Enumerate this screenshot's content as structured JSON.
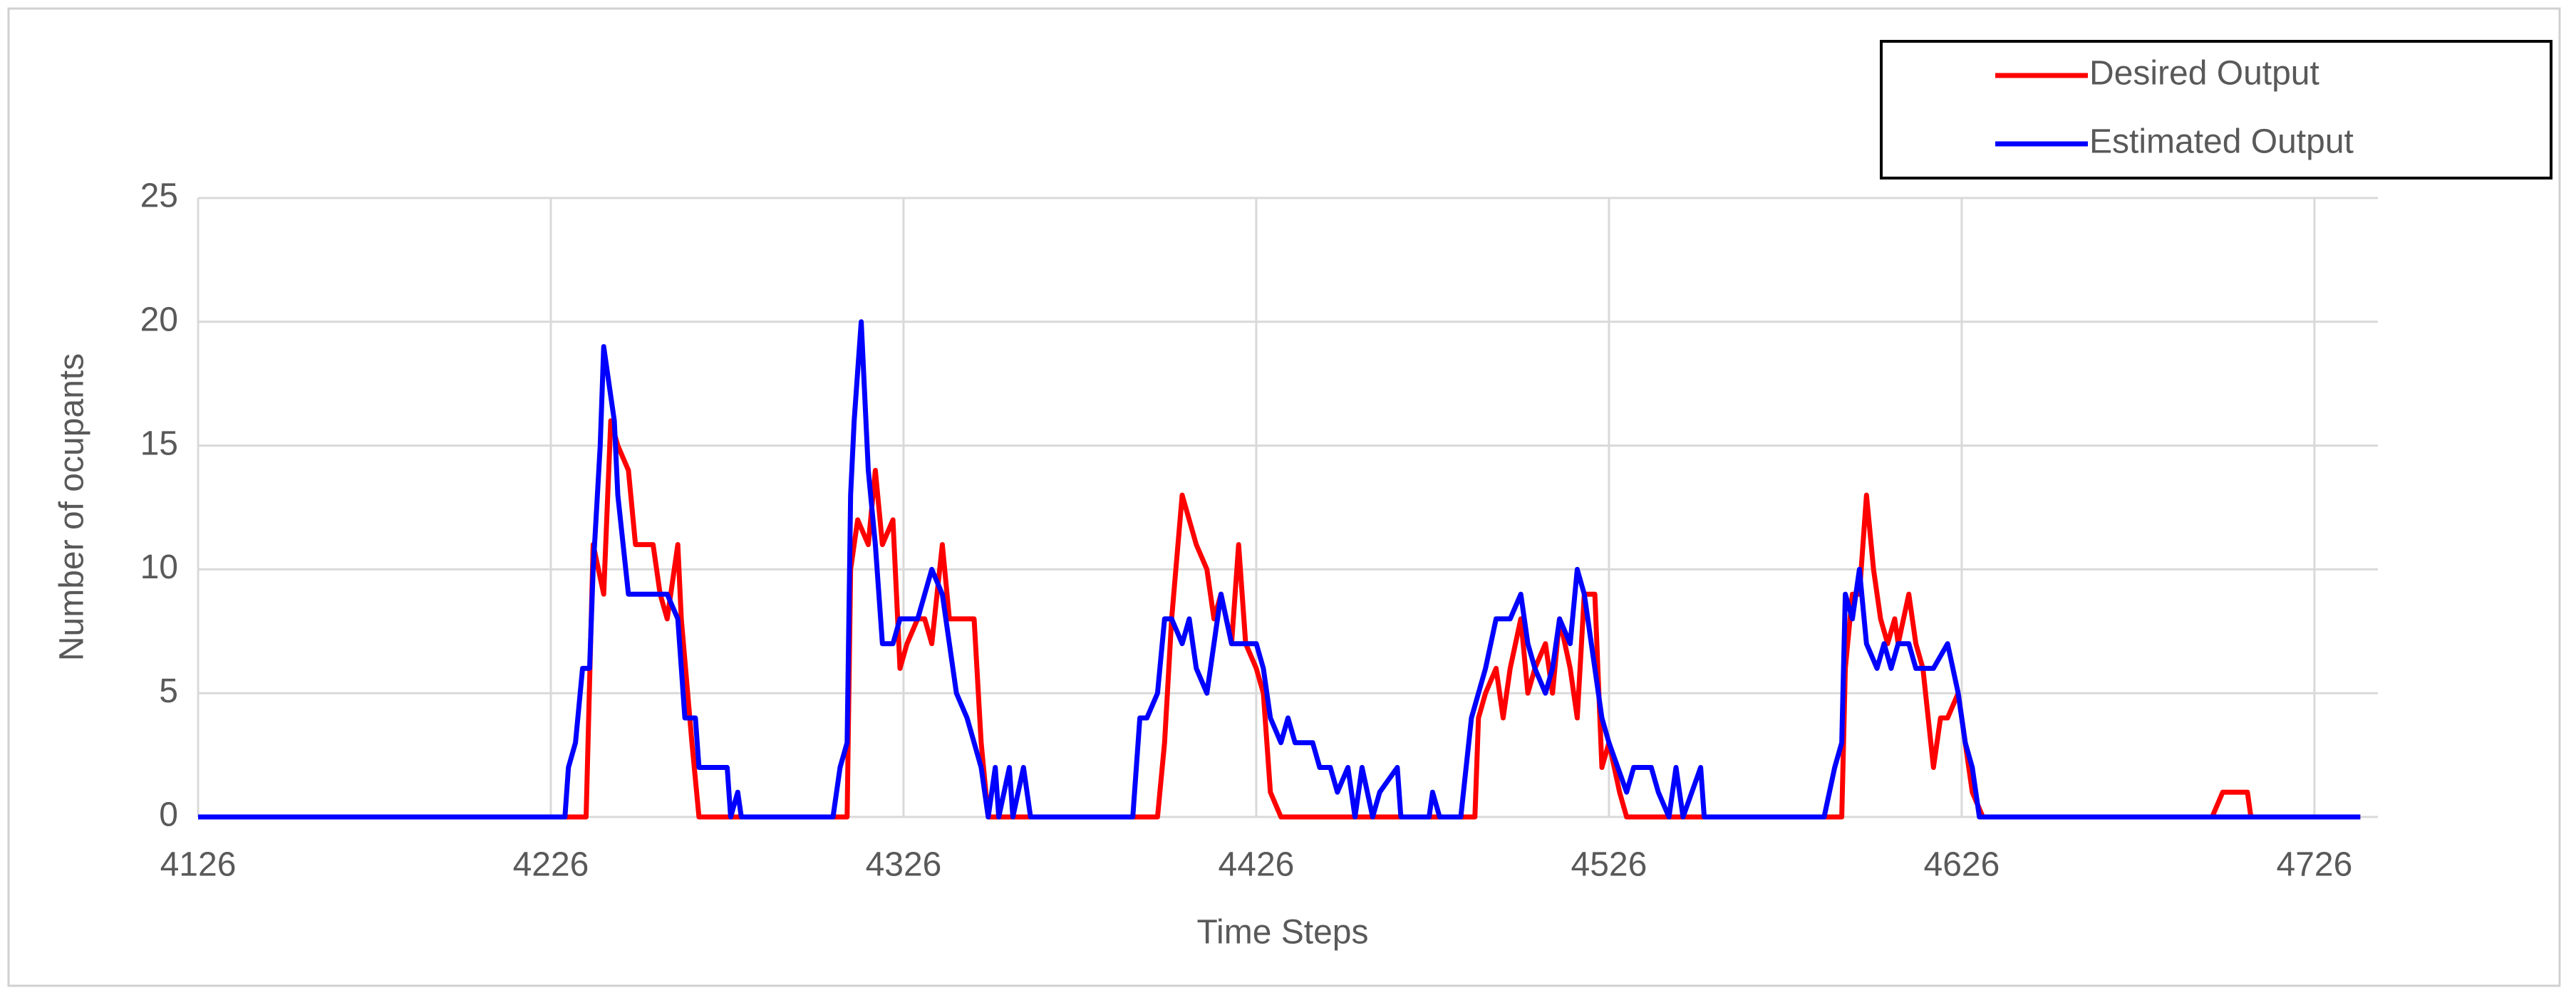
{
  "chart_data": {
    "type": "line",
    "x_label": "Time Steps",
    "y_label": "Number of ocupants",
    "xlim": [
      4126,
      4744
    ],
    "xticks": [
      4126,
      4226,
      4326,
      4426,
      4526,
      4626,
      4726
    ],
    "ylim": [
      0,
      25
    ],
    "yticks": [
      0,
      5,
      10,
      15,
      20,
      25
    ],
    "grid": true,
    "legend": "upper right",
    "series": [
      {
        "name": "Desired Output",
        "color": "#ff0000",
        "x": [
          4126,
          4236,
          4238,
          4241,
          4243,
          4245,
          4248,
          4250,
          4252,
          4255,
          4257,
          4259,
          4262,
          4263,
          4266,
          4268,
          4310,
          4311,
          4313,
          4316,
          4318,
          4320,
          4323,
          4325,
          4327,
          4330,
          4332,
          4334,
          4337,
          4339,
          4341,
          4346,
          4348,
          4350,
          4398,
          4400,
          4402,
          4405,
          4407,
          4409,
          4412,
          4414,
          4416,
          4419,
          4421,
          4423,
          4426,
          4428,
          4430,
          4433,
          4488,
          4489,
          4491,
          4494,
          4496,
          4498,
          4501,
          4503,
          4505,
          4508,
          4510,
          4512,
          4515,
          4517,
          4519,
          4522,
          4524,
          4526,
          4529,
          4531,
          4592,
          4593,
          4595,
          4597,
          4599,
          4601,
          4603,
          4605,
          4607,
          4608,
          4611,
          4613,
          4615,
          4618,
          4620,
          4622,
          4625,
          4627,
          4629,
          4632,
          4697,
          4700,
          4707,
          4708,
          4739
        ],
        "values": [
          0,
          0,
          11,
          9,
          16,
          15,
          14,
          11,
          11,
          11,
          9,
          8,
          11,
          8,
          3,
          0,
          0,
          10,
          12,
          11,
          14,
          11,
          12,
          6,
          7,
          8,
          8,
          7,
          11,
          8,
          8,
          8,
          3,
          0,
          0,
          3,
          8,
          13,
          12,
          11,
          10,
          8,
          9,
          7,
          11,
          7,
          6,
          5,
          1,
          0,
          0,
          4,
          5,
          6,
          4,
          6,
          8,
          5,
          6,
          7,
          5,
          8,
          6,
          4,
          9,
          9,
          2,
          3,
          1,
          0,
          0,
          6,
          9,
          9,
          13,
          10,
          8,
          7,
          8,
          7,
          9,
          7,
          6,
          2,
          4,
          4,
          5,
          3,
          1,
          0,
          0,
          1,
          1,
          0,
          0
        ]
      },
      {
        "name": "Estimated Output",
        "color": "#0000ff",
        "x": [
          4126,
          4230,
          4231,
          4233,
          4235,
          4237,
          4238,
          4240,
          4241,
          4243,
          4244,
          4245,
          4248,
          4259,
          4262,
          4264,
          4267,
          4268,
          4276,
          4277,
          4279,
          4280,
          4306,
          4308,
          4310,
          4311,
          4312,
          4313,
          4314,
          4316,
          4318,
          4320,
          4323,
          4325,
          4330,
          4332,
          4334,
          4337,
          4339,
          4341,
          4344,
          4346,
          4348,
          4350,
          4352,
          4353,
          4356,
          4357,
          4360,
          4362,
          4391,
          4393,
          4395,
          4398,
          4400,
          4402,
          4405,
          4407,
          4409,
          4412,
          4414,
          4416,
          4419,
          4421,
          4426,
          4428,
          4430,
          4433,
          4435,
          4437,
          4442,
          4444,
          4447,
          4449,
          4452,
          4454,
          4456,
          4459,
          4461,
          4466,
          4467,
          4475,
          4476,
          4478,
          4484,
          4487,
          4489,
          4491,
          4494,
          4498,
          4501,
          4503,
          4505,
          4508,
          4510,
          4512,
          4515,
          4517,
          4519,
          4522,
          4524,
          4526,
          4531,
          4533,
          4538,
          4540,
          4543,
          4545,
          4547,
          4552,
          4553,
          4587,
          4590,
          4592,
          4593,
          4595,
          4597,
          4599,
          4602,
          4604,
          4606,
          4608,
          4611,
          4613,
          4618,
          4622,
          4625,
          4627,
          4629,
          4631,
          4739
        ],
        "values": [
          0,
          0,
          2,
          3,
          6,
          6,
          10,
          15,
          19,
          17,
          16,
          13,
          9,
          9,
          8,
          4,
          4,
          2,
          2,
          0,
          1,
          0,
          0,
          2,
          3,
          13,
          16,
          18,
          20,
          14,
          11,
          7,
          7,
          8,
          8,
          9,
          10,
          9,
          7,
          5,
          4,
          3,
          2,
          0,
          2,
          0,
          2,
          0,
          2,
          0,
          0,
          4,
          4,
          5,
          8,
          8,
          7,
          8,
          6,
          5,
          7,
          9,
          7,
          7,
          7,
          6,
          4,
          3,
          4,
          3,
          3,
          2,
          2,
          1,
          2,
          0,
          2,
          0,
          1,
          2,
          0,
          0,
          1,
          0,
          0,
          4,
          5,
          6,
          8,
          8,
          9,
          7,
          6,
          5,
          6,
          8,
          7,
          10,
          9,
          6,
          4,
          3,
          1,
          2,
          2,
          1,
          0,
          2,
          0,
          2,
          0,
          0,
          2,
          3,
          9,
          8,
          10,
          7,
          6,
          7,
          6,
          7,
          7,
          6,
          6,
          7,
          5,
          3,
          2,
          0,
          0
        ]
      }
    ]
  }
}
